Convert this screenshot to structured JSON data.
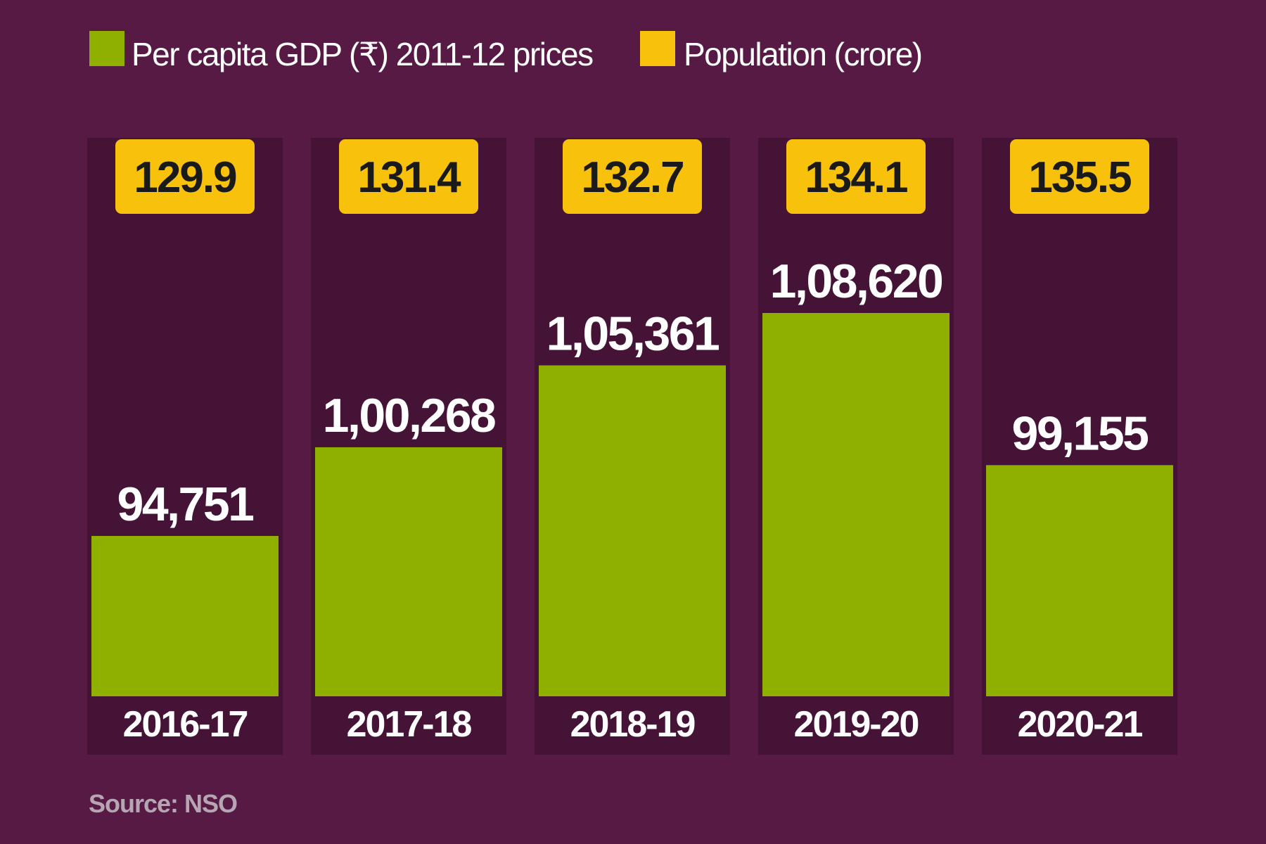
{
  "chart_data": {
    "type": "bar",
    "categories": [
      "2016-17",
      "2017-18",
      "2018-19",
      "2019-20",
      "2020-21"
    ],
    "series": [
      {
        "name": "Per capita GDP (₹)  2011-12 prices",
        "values": [
          94751,
          100268,
          105361,
          108620,
          99155
        ],
        "labels": [
          "94,751",
          "1,00,268",
          "1,05,361",
          "1,08,620",
          "99,155"
        ],
        "color": "#8fb000"
      },
      {
        "name": "Population (crore)",
        "values": [
          129.9,
          131.4,
          132.7,
          134.1,
          135.5
        ],
        "labels": [
          "129.9",
          "131.4",
          "132.7",
          "134.1",
          "135.5"
        ],
        "color": "#f8c20c"
      }
    ],
    "title": "",
    "xlabel": "",
    "ylabel": "",
    "ylim": [
      0,
      130000
    ],
    "grid": false,
    "legend": "top-left",
    "source": "Source: NSO"
  },
  "colors": {
    "background": "#561a44",
    "column_background": "#451335",
    "bar": "#8fb000",
    "population_badge": "#f8c20c"
  }
}
